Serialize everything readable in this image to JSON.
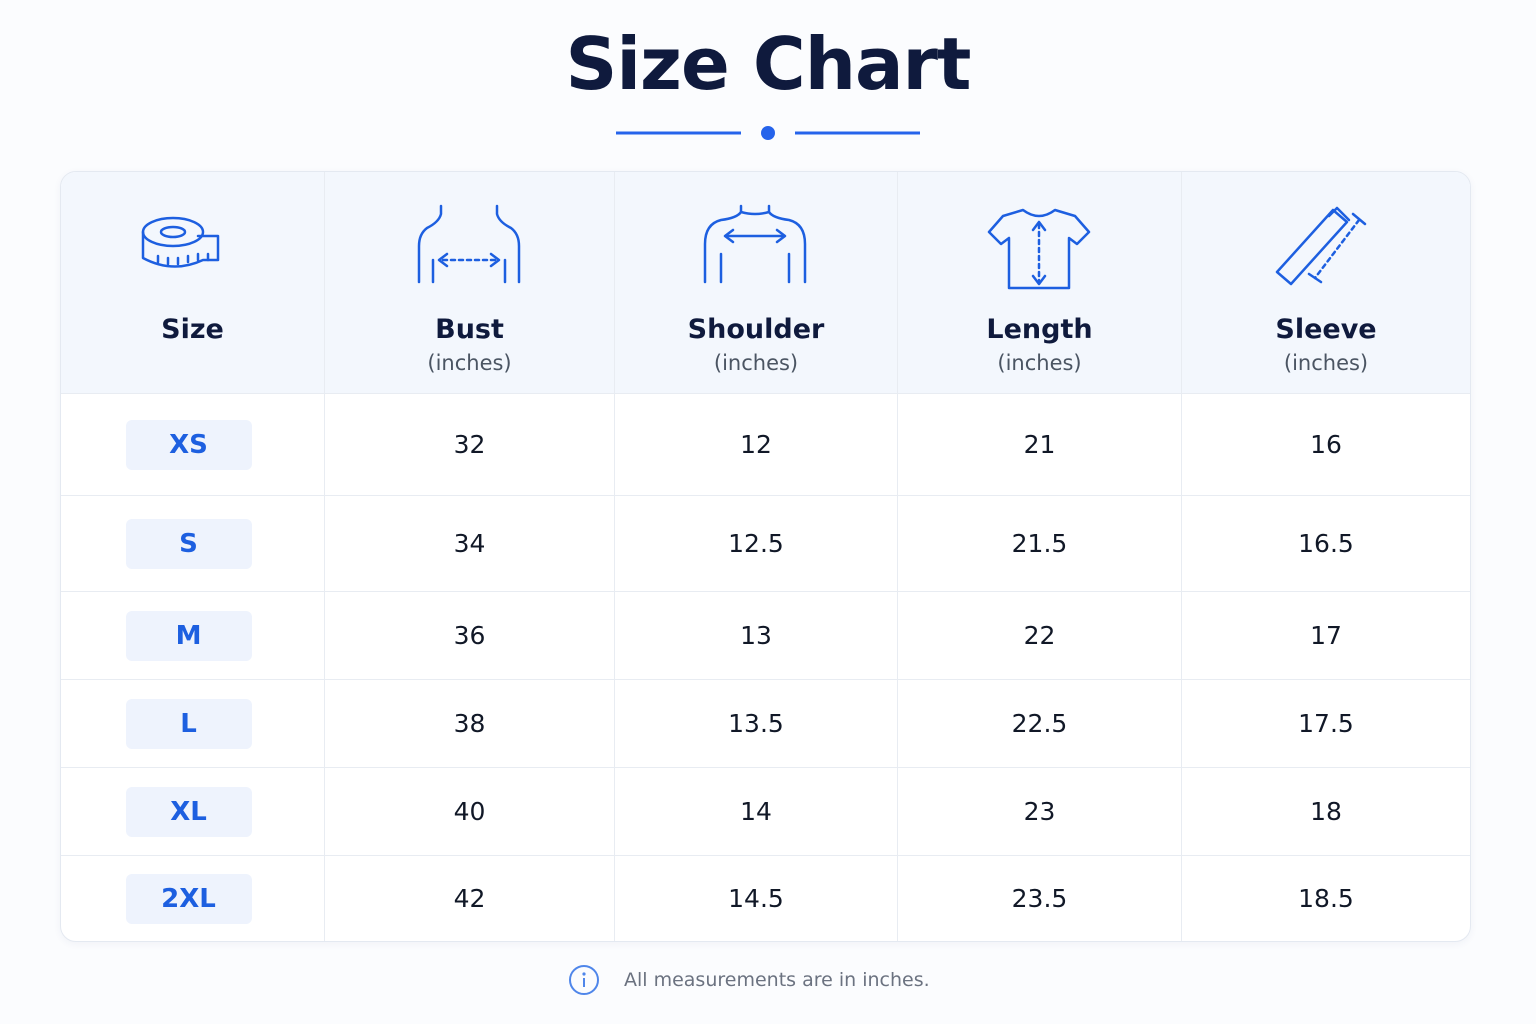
{
  "header": {
    "title": "Size Chart"
  },
  "table": {
    "columns": [
      {
        "name": "Size"
      },
      {
        "name": "Bust",
        "unit": "(inches)"
      },
      {
        "name": "Shoulder",
        "unit": "(inches)"
      },
      {
        "name": "Length",
        "unit": "(inches)"
      },
      {
        "name": "Sleeve",
        "unit": "(inches)"
      }
    ],
    "rows": [
      [
        "XS",
        "32",
        "12",
        "21",
        "16"
      ],
      [
        "S",
        "34",
        "12.5",
        "21.5",
        "16.5"
      ],
      [
        "M",
        "36",
        "13",
        "22",
        "17"
      ],
      [
        "L",
        "38",
        "13.5",
        "22.5",
        "17.5"
      ],
      [
        "XL",
        "40",
        "14",
        "23",
        "18"
      ],
      [
        "2XL",
        "42",
        "14.5",
        "23.5",
        "18.5"
      ]
    ]
  },
  "footer": {
    "note": "All measurements are in inches."
  }
}
